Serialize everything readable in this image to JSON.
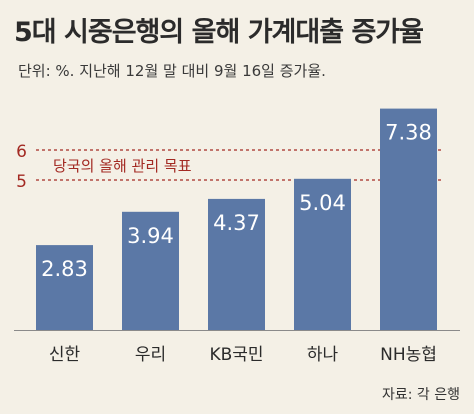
{
  "title": "5대 시중은행의 올해 가계대출 증가율",
  "subtitle": "단위: %. 지난해 12월 말 대비 9월 16일 증가율.",
  "source": "자료: 각 은행",
  "chart_data": {
    "type": "bar",
    "categories": [
      "신한",
      "우리",
      "KB국민",
      "하나",
      "NH농협"
    ],
    "values": [
      2.83,
      3.94,
      4.37,
      5.04,
      7.38
    ],
    "value_labels": [
      "2.83",
      "3.94",
      "4.37",
      "5.04",
      "7.38"
    ],
    "reference_lines": [
      5,
      6
    ],
    "reference_band_label": "당국의 올해 관리 목표",
    "ylim": [
      0,
      7.8
    ],
    "grid": false,
    "bar_color": "#5b78a6",
    "reference_color": "#a32a23"
  }
}
